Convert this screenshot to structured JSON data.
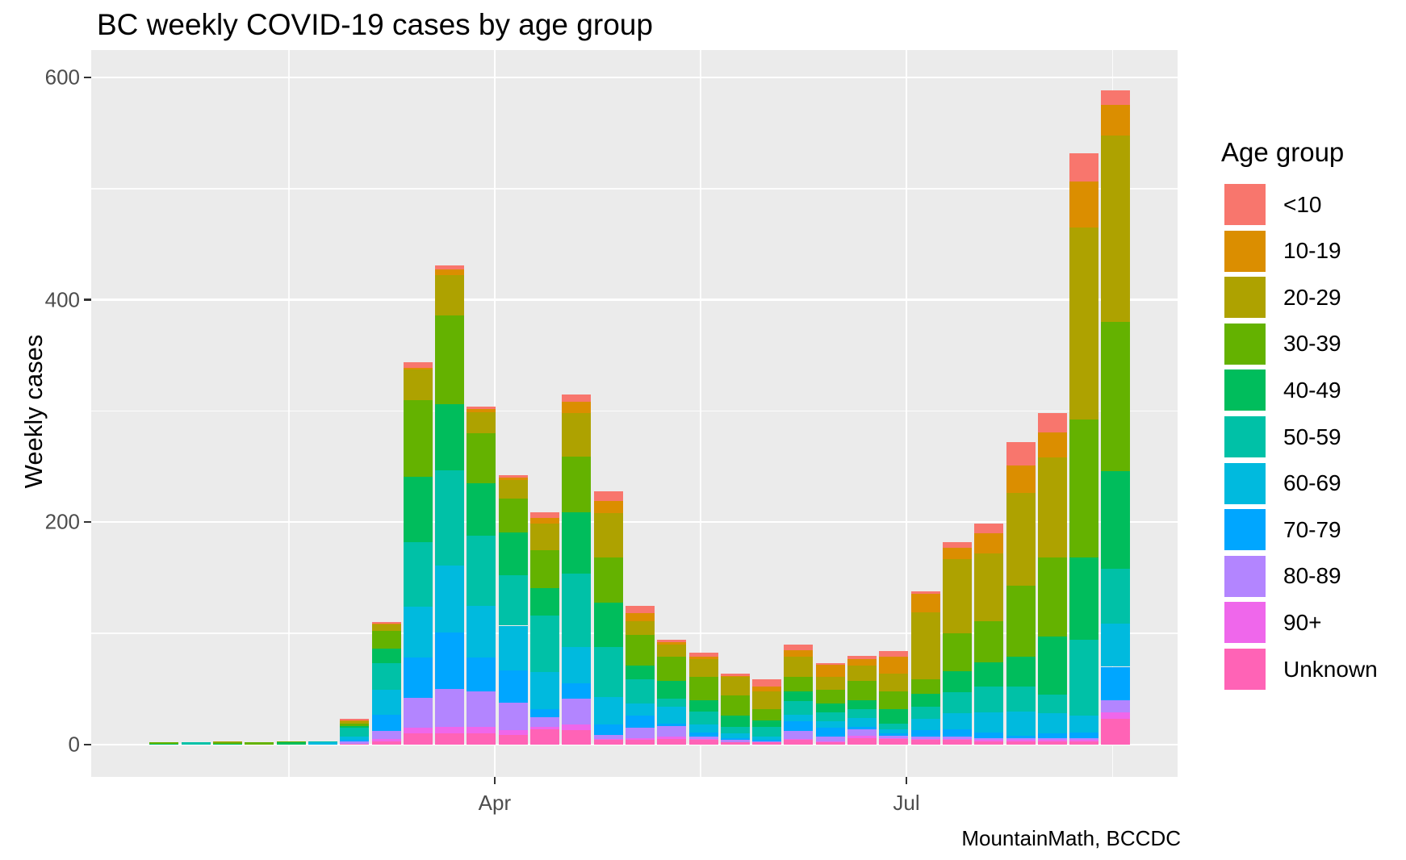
{
  "title": "BC weekly COVID-19 cases by age group",
  "caption": "MountainMath, BCCDC",
  "legend": {
    "title": "Age group"
  },
  "chart_data": {
    "type": "bar",
    "stacked": true,
    "title": "BC weekly COVID-19 cases by age group",
    "xlabel": "",
    "ylabel": "Weekly cases",
    "n_weeks": 31,
    "x_description": "31 consecutive weeks, late January through mid August; only month ticks are labeled",
    "ylim": [
      -30,
      623
    ],
    "y_major_ticks": [
      0,
      200,
      400,
      600
    ],
    "y_minor_gridlines": [
      100,
      300,
      500
    ],
    "x_ticks": [
      {
        "label": "Apr",
        "week_position": 11.42
      },
      {
        "label": "Jul",
        "week_position": 24.4
      }
    ],
    "x_minor_gridline_week_positions": [
      4.93,
      17.91,
      30.9
    ],
    "legend_title": "Age group",
    "legend_position": "right",
    "grid": true,
    "panel_background": "#EBEBEB",
    "gridline_color": "#FFFFFF",
    "axis_text_color": "#4D4D4D",
    "tick_mark_color": "#333333",
    "stack_order_bottom_to_top": [
      "Unknown",
      "90+",
      "80-89",
      "70-79",
      "60-69",
      "50-59",
      "40-49",
      "30-39",
      "20-29",
      "10-19",
      "<10"
    ],
    "series": [
      {
        "name": "<10",
        "color": "#F8766D",
        "values": [
          0,
          0,
          0,
          0,
          0,
          0,
          1,
          1,
          5,
          4,
          2,
          2,
          5,
          7,
          9,
          7,
          2,
          4,
          2,
          7,
          5,
          1,
          3,
          5,
          2,
          5,
          9,
          21,
          17,
          26,
          13
        ]
      },
      {
        "name": "10-19",
        "color": "#DB8E00",
        "values": [
          0,
          0,
          0,
          0,
          0,
          0,
          1,
          1,
          2,
          5,
          3,
          2,
          5,
          10,
          11,
          7,
          2,
          2,
          1,
          4,
          6,
          11,
          6,
          15,
          17,
          10,
          18,
          25,
          23,
          41,
          27
        ]
      },
      {
        "name": "20-29",
        "color": "#AEA200",
        "values": [
          0,
          0,
          1,
          0,
          0,
          0,
          2,
          6,
          27,
          36,
          19,
          17,
          24,
          39,
          40,
          12,
          11,
          16,
          17,
          16,
          18,
          12,
          14,
          16,
          60,
          67,
          61,
          83,
          90,
          173,
          168
        ]
      },
      {
        "name": "30-39",
        "color": "#64B200",
        "values": [
          1,
          0,
          1,
          2,
          1,
          0,
          2,
          16,
          69,
          80,
          45,
          30,
          34,
          50,
          40,
          28,
          22,
          21,
          18,
          10,
          13,
          12,
          17,
          16,
          13,
          34,
          37,
          64,
          71,
          124,
          134
        ]
      },
      {
        "name": "40-49",
        "color": "#00BD5C",
        "values": [
          1,
          0,
          1,
          0,
          2,
          0,
          2,
          13,
          59,
          59,
          47,
          39,
          25,
          55,
          40,
          12,
          16,
          10,
          10,
          6,
          9,
          8,
          8,
          13,
          12,
          19,
          22,
          27,
          52,
          74,
          88
        ]
      },
      {
        "name": "50-59",
        "color": "#00C1A7",
        "values": [
          0,
          2,
          0,
          0,
          0,
          1,
          8,
          24,
          58,
          86,
          63,
          45,
          51,
          66,
          45,
          22,
          7,
          12,
          6,
          9,
          12,
          8,
          8,
          5,
          11,
          19,
          23,
          22,
          17,
          68,
          49
        ]
      },
      {
        "name": "60-69",
        "color": "#00BADE",
        "values": [
          0,
          0,
          0,
          0,
          0,
          2,
          3,
          22,
          46,
          60,
          47,
          40,
          33,
          33,
          25,
          11,
          15,
          7,
          4,
          3,
          6,
          6,
          8,
          4,
          10,
          14,
          18,
          22,
          18,
          15,
          39
        ]
      },
      {
        "name": "70-79",
        "color": "#00A6FF",
        "values": [
          0,
          0,
          0,
          0,
          0,
          0,
          1,
          15,
          36,
          51,
          30,
          29,
          7,
          14,
          9,
          11,
          2,
          4,
          2,
          1,
          9,
          8,
          2,
          2,
          6,
          7,
          5,
          2,
          4,
          5,
          30
        ]
      },
      {
        "name": "80-89",
        "color": "#B385FF",
        "values": [
          0,
          0,
          0,
          0,
          0,
          0,
          2,
          7,
          27,
          34,
          32,
          25,
          9,
          23,
          4,
          9,
          10,
          2,
          2,
          1,
          7,
          4,
          6,
          2,
          2,
          2,
          2,
          2,
          2,
          2,
          11
        ]
      },
      {
        "name": "90+",
        "color": "#EF67EB",
        "values": [
          0,
          0,
          0,
          0,
          0,
          0,
          0,
          2,
          5,
          6,
          6,
          4,
          2,
          5,
          1,
          2,
          2,
          1,
          0,
          0,
          1,
          1,
          2,
          1,
          1,
          1,
          1,
          1,
          1,
          1,
          6
        ]
      },
      {
        "name": "Unknown",
        "color": "#FF63B6",
        "values": [
          0,
          0,
          0,
          0,
          0,
          0,
          1,
          3,
          10,
          10,
          10,
          9,
          14,
          13,
          4,
          4,
          5,
          4,
          2,
          2,
          4,
          2,
          6,
          5,
          4,
          4,
          3,
          3,
          3,
          3,
          23
        ]
      }
    ],
    "weekly_totals": [
      2,
      2,
      3,
      2,
      3,
      3,
      23,
      110,
      344,
      431,
      304,
      242,
      209,
      315,
      228,
      125,
      94,
      83,
      64,
      59,
      90,
      73,
      80,
      84,
      138,
      182,
      199,
      272,
      298,
      532,
      588
    ]
  }
}
